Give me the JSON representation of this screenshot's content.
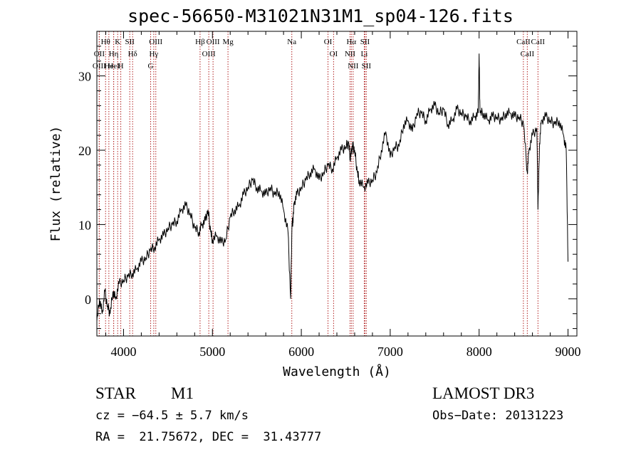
{
  "title": "spec-56650-M31021N31M1_sp04-126.fits",
  "footer": {
    "class_label": "STAR",
    "subclass_label": "M1",
    "cz": "cz = −64.5 ± 5.7 km/s",
    "radec": "RA =  21.75672, DEC =  31.43777",
    "survey": "LAMOST DR3",
    "obs_date": "Obs−Date: 20131223"
  },
  "chart_data": {
    "type": "line",
    "title": "spec-56650-M31021N31M1_sp04-126.fits",
    "xlabel": "Wavelength (Å)",
    "ylabel": "Flux (relative)",
    "xlim": [
      3700,
      9100
    ],
    "ylim": [
      -5,
      36
    ],
    "x_ticks": [
      4000,
      5000,
      6000,
      7000,
      8000,
      9000
    ],
    "y_ticks": [
      0,
      10,
      20,
      30
    ],
    "grid": false,
    "line_color": "#000000",
    "marker_color": "#b22222",
    "series": [
      {
        "x": [
          3700,
          3730,
          3760,
          3790,
          3820,
          3850,
          3880,
          3910,
          3950,
          4000,
          4050,
          4100,
          4150,
          4200,
          4250,
          4300,
          4350,
          4400,
          4450,
          4500,
          4550,
          4600,
          4650,
          4700,
          4750,
          4800,
          4850,
          4880,
          4920,
          4950,
          4980,
          5000,
          5050,
          5100,
          5150,
          5200,
          5250,
          5300,
          5350,
          5400,
          5450,
          5500,
          5550,
          5600,
          5650,
          5700,
          5750,
          5800,
          5850,
          5880,
          5895,
          5905,
          5920,
          5950,
          6000,
          6050,
          6100,
          6150,
          6200,
          6250,
          6300,
          6350,
          6400,
          6450,
          6500,
          6530,
          6550,
          6565,
          6580,
          6600,
          6630,
          6650,
          6700,
          6750,
          6800,
          6850,
          6900,
          6950,
          7000,
          7050,
          7100,
          7150,
          7200,
          7250,
          7300,
          7350,
          7400,
          7450,
          7500,
          7550,
          7600,
          7650,
          7700,
          7750,
          7800,
          7850,
          7900,
          7950,
          7990,
          8000,
          8010,
          8050,
          8100,
          8150,
          8200,
          8250,
          8300,
          8350,
          8400,
          8450,
          8500,
          8542,
          8560,
          8600,
          8650,
          8662,
          8680,
          8700,
          8750,
          8800,
          8850,
          8900,
          8950,
          8980,
          9000
        ],
        "y": [
          -3,
          0,
          -2,
          1,
          -1,
          -2,
          1,
          0,
          2,
          2.5,
          3,
          3.5,
          4,
          5,
          5.5,
          6.5,
          7,
          8,
          8.5,
          9.5,
          10,
          10.5,
          12,
          12.5,
          11.5,
          9.5,
          9,
          10,
          10.5,
          12,
          9,
          8,
          8.5,
          7.5,
          8,
          11,
          12,
          12.5,
          14,
          15,
          16,
          15,
          14.5,
          14,
          15,
          14,
          14.5,
          12,
          9,
          0,
          10,
          10.5,
          13,
          14,
          15,
          16,
          17,
          17.5,
          16,
          17,
          18,
          17.5,
          19,
          20,
          20.5,
          21,
          19,
          20,
          20.5,
          20,
          17,
          16,
          15,
          15.5,
          16,
          17,
          20,
          22.5,
          19,
          20.5,
          20.5,
          23.5,
          24,
          22.5,
          25,
          25,
          24,
          25.5,
          26,
          25,
          25.5,
          23.5,
          24,
          25.5,
          25,
          24.5,
          24,
          24.5,
          25,
          33,
          25,
          25,
          24,
          24.5,
          24.5,
          24,
          25,
          25,
          24.5,
          24.5,
          23.5,
          17,
          20,
          22,
          23,
          12,
          21,
          24,
          24.5,
          24,
          23.5,
          24,
          22,
          20,
          5
        ]
      }
    ],
    "lines": [
      {
        "name": "Hθ",
        "wave": 3798
      },
      {
        "name": "OII",
        "wave": 3727
      },
      {
        "name": "OIII",
        "wave": 3727
      },
      {
        "name": "He",
        "wave": 3835
      },
      {
        "name": "Hη",
        "wave": 3889
      },
      {
        "name": "K",
        "wave": 3934
      },
      {
        "name": "H",
        "wave": 3969
      },
      {
        "name": "HeI",
        "wave": 3889
      },
      {
        "name": "SII",
        "wave": 4070
      },
      {
        "name": "Hδ",
        "wave": 4102
      },
      {
        "name": "OIII",
        "wave": 4363
      },
      {
        "name": "Hγ",
        "wave": 4340
      },
      {
        "name": "G",
        "wave": 4305
      },
      {
        "name": "Hβ",
        "wave": 4861
      },
      {
        "name": "OIII",
        "wave": 4959
      },
      {
        "name": "OIII",
        "wave": 5007
      },
      {
        "name": "Mg",
        "wave": 5175
      },
      {
        "name": "Na",
        "wave": 5893
      },
      {
        "name": "OI",
        "wave": 6300
      },
      {
        "name": "OI",
        "wave": 6363
      },
      {
        "name": "Hα",
        "wave": 6563
      },
      {
        "name": "NII",
        "wave": 6548
      },
      {
        "name": "NII",
        "wave": 6583
      },
      {
        "name": "SII",
        "wave": 6716
      },
      {
        "name": "Li",
        "wave": 6708
      },
      {
        "name": "SII",
        "wave": 6731
      },
      {
        "name": "CaII",
        "wave": 8498
      },
      {
        "name": "CaII",
        "wave": 8542
      },
      {
        "name": "CaII",
        "wave": 8662
      }
    ]
  }
}
